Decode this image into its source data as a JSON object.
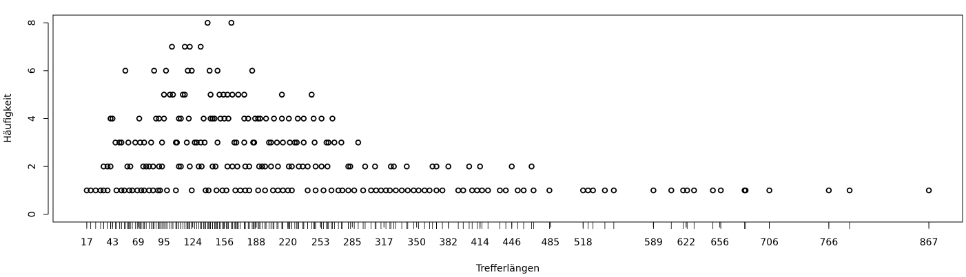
{
  "chart_data": {
    "type": "scatter",
    "x_label": "Trefferlängen",
    "y_label": "Häufigkeit",
    "color": "#000000",
    "rug": true,
    "x": [
      139,
      163,
      103,
      116,
      121,
      132,
      56,
      85,
      97,
      119,
      123,
      141,
      149,
      184,
      95,
      101,
      104,
      114,
      116,
      142,
      151,
      155,
      159,
      164,
      170,
      176,
      214,
      244,
      41,
      43,
      70,
      87,
      90,
      95,
      110,
      112,
      120,
      135,
      142,
      144,
      146,
      152,
      156,
      160,
      176,
      180,
      187,
      190,
      192,
      198,
      206,
      214,
      221,
      230,
      236,
      246,
      254,
      265,
      46,
      50,
      52,
      59,
      66,
      71,
      75,
      82,
      93,
      107,
      108,
      118,
      126,
      128,
      132,
      136,
      149,
      166,
      168,
      176,
      185,
      186,
      201,
      203,
      209,
      215,
      222,
      227,
      229,
      236,
      247,
      259,
      261,
      267,
      274,
      291,
      34,
      38,
      41,
      58,
      61,
      74,
      77,
      80,
      84,
      90,
      93,
      110,
      112,
      121,
      130,
      133,
      144,
      147,
      159,
      164,
      169,
      177,
      181,
      191,
      194,
      197,
      203,
      210,
      221,
      224,
      231,
      235,
      240,
      248,
      254,
      260,
      281,
      283,
      298,
      308,
      324,
      327,
      340,
      366,
      370,
      382,
      403,
      414,
      446,
      466,
      17,
      21,
      26,
      31,
      34,
      38,
      47,
      52,
      55,
      60,
      63,
      68,
      72,
      75,
      80,
      84,
      89,
      91,
      98,
      107,
      123,
      137,
      140,
      148,
      154,
      158,
      167,
      172,
      177,
      181,
      190,
      197,
      205,
      210,
      215,
      220,
      224,
      240,
      248,
      256,
      264,
      271,
      275,
      281,
      287,
      296,
      304,
      309,
      314,
      319,
      323,
      329,
      335,
      341,
      347,
      352,
      358,
      363,
      370,
      376,
      392,
      397,
      406,
      411,
      416,
      422,
      434,
      440,
      452,
      458,
      468,
      484,
      518,
      523,
      528,
      540,
      549,
      589,
      607,
      619,
      623,
      630,
      649,
      657,
      681,
      682,
      706,
      766,
      787,
      867
    ],
    "values": [
      8,
      8,
      7,
      7,
      7,
      7,
      6,
      6,
      6,
      6,
      6,
      6,
      6,
      6,
      5,
      5,
      5,
      5,
      5,
      5,
      5,
      5,
      5,
      5,
      5,
      5,
      5,
      5,
      4,
      4,
      4,
      4,
      4,
      4,
      4,
      4,
      4,
      4,
      4,
      4,
      4,
      4,
      4,
      4,
      4,
      4,
      4,
      4,
      4,
      4,
      4,
      4,
      4,
      4,
      4,
      4,
      4,
      4,
      3,
      3,
      3,
      3,
      3,
      3,
      3,
      3,
      3,
      3,
      3,
      3,
      3,
      3,
      3,
      3,
      3,
      3,
      3,
      3,
      3,
      3,
      3,
      3,
      3,
      3,
      3,
      3,
      3,
      3,
      3,
      3,
      3,
      3,
      3,
      3,
      2,
      2,
      2,
      2,
      2,
      2,
      2,
      2,
      2,
      2,
      2,
      2,
      2,
      2,
      2,
      2,
      2,
      2,
      2,
      2,
      2,
      2,
      2,
      2,
      2,
      2,
      2,
      2,
      2,
      2,
      2,
      2,
      2,
      2,
      2,
      2,
      2,
      2,
      2,
      2,
      2,
      2,
      2,
      2,
      2,
      2,
      2,
      2,
      2,
      2,
      1,
      1,
      1,
      1,
      1,
      1,
      1,
      1,
      1,
      1,
      1,
      1,
      1,
      1,
      1,
      1,
      1,
      1,
      1,
      1,
      1,
      1,
      1,
      1,
      1,
      1,
      1,
      1,
      1,
      1,
      1,
      1,
      1,
      1,
      1,
      1,
      1,
      1,
      1,
      1,
      1,
      1,
      1,
      1,
      1,
      1,
      1,
      1,
      1,
      1,
      1,
      1,
      1,
      1,
      1,
      1,
      1,
      1,
      1,
      1,
      1,
      1,
      1,
      1,
      1,
      1,
      1,
      1,
      1,
      1,
      1,
      1,
      1,
      1,
      1,
      1,
      1,
      1,
      1,
      1,
      1,
      1,
      1,
      1,
      1,
      1,
      1,
      1,
      1,
      1
    ],
    "xlim": [
      -17,
      901
    ],
    "ylim": [
      -0.32,
      8.32
    ],
    "xticks": [
      17,
      43,
      69,
      95,
      124,
      156,
      188,
      220,
      253,
      285,
      317,
      350,
      382,
      414,
      446,
      485,
      518,
      589,
      622,
      656,
      706,
      766,
      867
    ],
    "yticks": [
      0,
      2,
      4,
      6,
      8
    ]
  }
}
